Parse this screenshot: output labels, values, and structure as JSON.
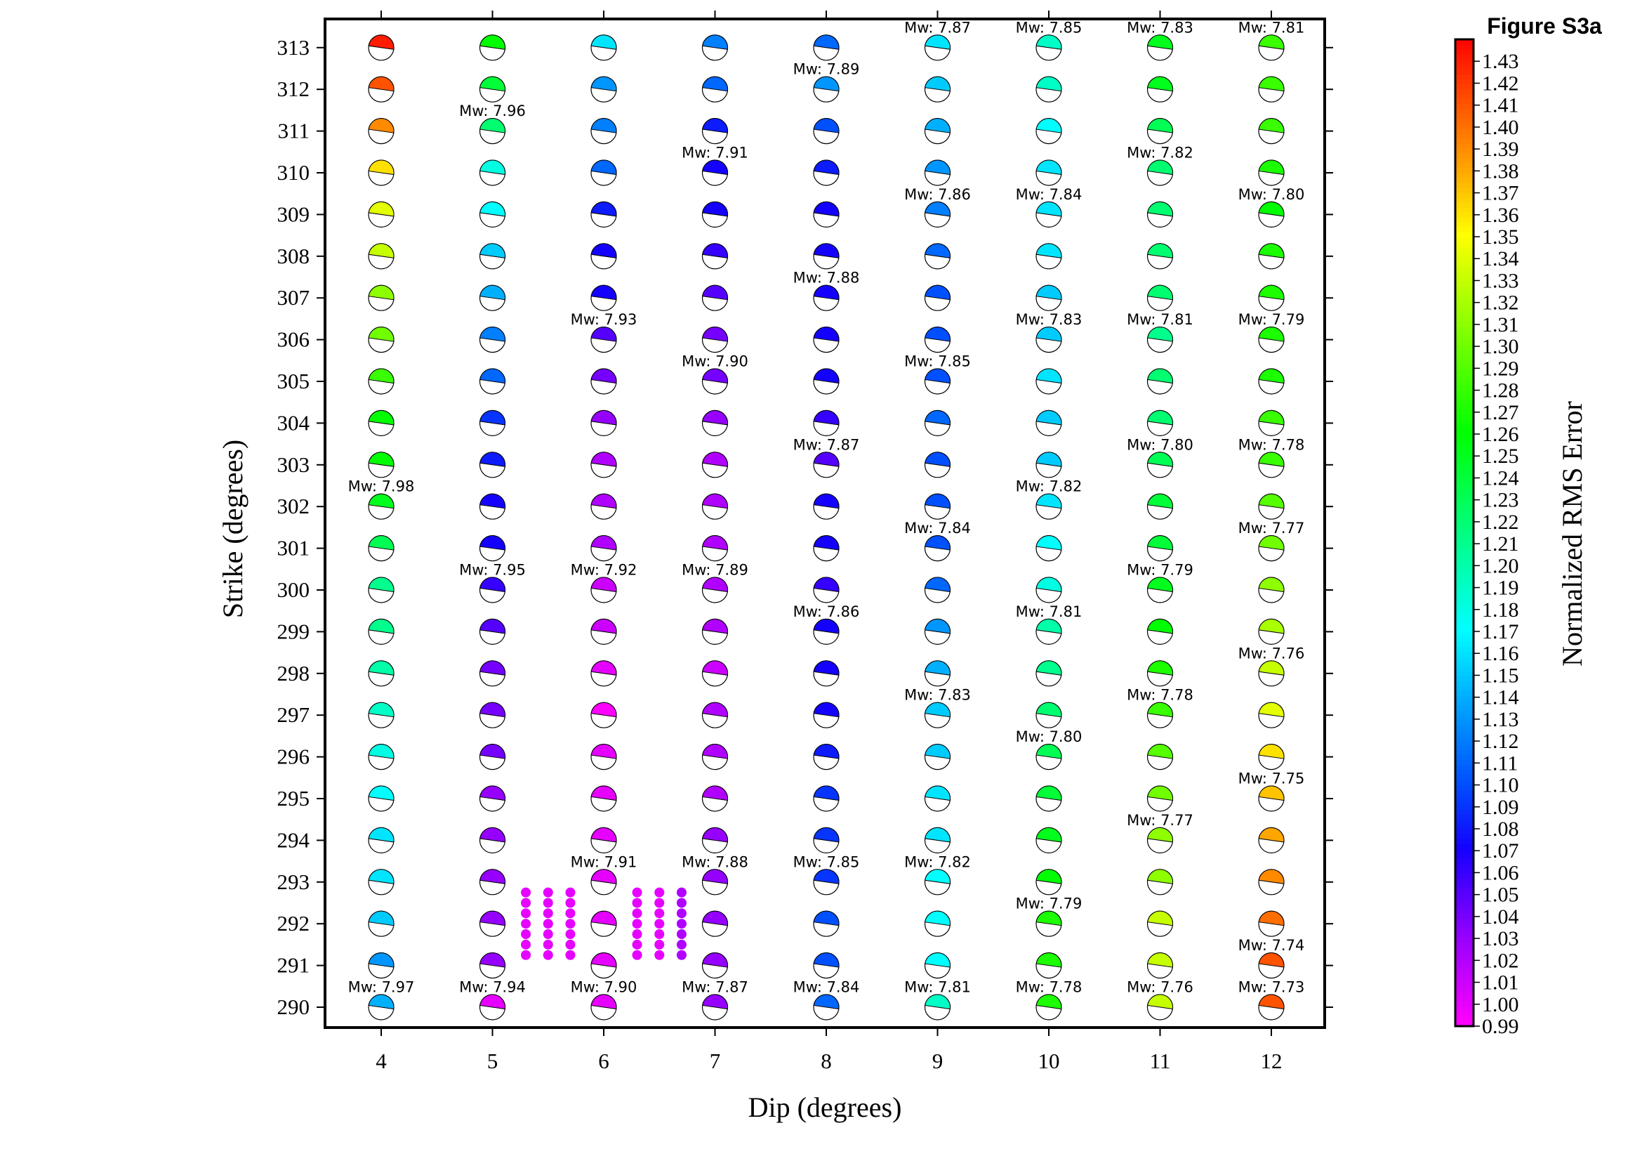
{
  "figure_label": "Figure S3a",
  "chart_data": {
    "type": "scatter",
    "xlabel": "Dip (degrees)",
    "ylabel": "Strike (degrees)",
    "x_ticks": [
      "4",
      "5",
      "6",
      "7",
      "8",
      "9",
      "10",
      "11",
      "12"
    ],
    "y_ticks": [
      "290",
      "291",
      "292",
      "293",
      "294",
      "295",
      "296",
      "297",
      "298",
      "299",
      "300",
      "301",
      "302",
      "303",
      "304",
      "305",
      "306",
      "307",
      "308",
      "309",
      "310",
      "311",
      "312",
      "313"
    ],
    "xlim": [
      3.5,
      12.5
    ],
    "ylim": [
      289.5,
      313.75
    ],
    "colorbar": {
      "label": "Normalized RMS Error",
      "min": 0.99,
      "max": 1.44,
      "tick_labels": [
        "0.99",
        "1.00",
        "1.01",
        "1.02",
        "1.03",
        "1.04",
        "1.05",
        "1.06",
        "1.07",
        "1.08",
        "1.09",
        "1.10",
        "1.11",
        "1.12",
        "1.13",
        "1.14",
        "1.15",
        "1.16",
        "1.17",
        "1.18",
        "1.19",
        "1.20",
        "1.21",
        "1.22",
        "1.23",
        "1.24",
        "1.25",
        "1.26",
        "1.27",
        "1.28",
        "1.29",
        "1.30",
        "1.31",
        "1.32",
        "1.33",
        "1.34",
        "1.35",
        "1.36",
        "1.37",
        "1.38",
        "1.39",
        "1.40",
        "1.41",
        "1.42",
        "1.43"
      ]
    },
    "rms_grid": {
      "strikes": [
        313,
        312,
        311,
        310,
        309,
        308,
        307,
        306,
        305,
        304,
        303,
        302,
        301,
        300,
        299,
        298,
        297,
        296,
        295,
        294,
        293,
        292,
        291,
        290
      ],
      "dips": [
        4,
        5,
        6,
        7,
        8,
        9,
        10,
        11,
        12
      ],
      "values": [
        [
          1.43,
          1.26,
          1.16,
          1.12,
          1.11,
          1.16,
          1.19,
          1.25,
          1.28
        ],
        [
          1.41,
          1.24,
          1.13,
          1.11,
          1.13,
          1.15,
          1.19,
          1.25,
          1.28
        ],
        [
          1.39,
          1.22,
          1.12,
          1.08,
          1.1,
          1.14,
          1.17,
          1.23,
          1.28
        ],
        [
          1.36,
          1.18,
          1.11,
          1.07,
          1.08,
          1.13,
          1.16,
          1.22,
          1.27
        ],
        [
          1.34,
          1.17,
          1.08,
          1.07,
          1.07,
          1.12,
          1.16,
          1.22,
          1.26
        ],
        [
          1.33,
          1.15,
          1.07,
          1.06,
          1.07,
          1.11,
          1.16,
          1.22,
          1.27
        ],
        [
          1.31,
          1.14,
          1.07,
          1.05,
          1.07,
          1.1,
          1.15,
          1.22,
          1.27
        ],
        [
          1.3,
          1.12,
          1.05,
          1.04,
          1.07,
          1.1,
          1.15,
          1.21,
          1.27
        ],
        [
          1.28,
          1.11,
          1.04,
          1.04,
          1.07,
          1.1,
          1.16,
          1.22,
          1.27
        ],
        [
          1.26,
          1.09,
          1.03,
          1.03,
          1.06,
          1.11,
          1.15,
          1.22,
          1.28
        ],
        [
          1.26,
          1.08,
          1.02,
          1.02,
          1.05,
          1.1,
          1.15,
          1.23,
          1.28
        ],
        [
          1.25,
          1.07,
          1.02,
          1.02,
          1.07,
          1.1,
          1.16,
          1.24,
          1.29
        ],
        [
          1.23,
          1.07,
          1.02,
          1.02,
          1.07,
          1.1,
          1.17,
          1.24,
          1.3
        ],
        [
          1.21,
          1.06,
          1.01,
          1.02,
          1.06,
          1.11,
          1.18,
          1.25,
          1.31
        ],
        [
          1.21,
          1.05,
          1.01,
          1.02,
          1.07,
          1.13,
          1.2,
          1.26,
          1.32
        ],
        [
          1.2,
          1.04,
          1.0,
          1.01,
          1.07,
          1.14,
          1.21,
          1.27,
          1.33
        ],
        [
          1.19,
          1.04,
          0.99,
          1.02,
          1.07,
          1.15,
          1.22,
          1.28,
          1.34
        ],
        [
          1.18,
          1.04,
          1.0,
          1.02,
          1.08,
          1.15,
          1.23,
          1.29,
          1.36
        ],
        [
          1.17,
          1.03,
          1.0,
          1.02,
          1.09,
          1.16,
          1.24,
          1.3,
          1.37
        ],
        [
          1.16,
          1.03,
          1.0,
          1.03,
          1.09,
          1.16,
          1.25,
          1.31,
          1.38
        ],
        [
          1.16,
          1.03,
          1.0,
          1.03,
          1.09,
          1.17,
          1.26,
          1.31,
          1.39
        ],
        [
          1.15,
          1.03,
          1.0,
          1.03,
          1.1,
          1.17,
          1.27,
          1.33,
          1.4
        ],
        [
          1.13,
          1.03,
          1.0,
          1.03,
          1.1,
          1.17,
          1.27,
          1.33,
          1.41
        ],
        [
          1.14,
          1.0,
          1.0,
          1.03,
          1.11,
          1.19,
          1.27,
          1.33,
          1.41
        ]
      ]
    },
    "mw_annotations": [
      {
        "text": "Mw: 7.87",
        "dip": 9,
        "strike": 313.48
      },
      {
        "text": "Mw: 7.85",
        "dip": 10,
        "strike": 313.48
      },
      {
        "text": "Mw: 7.83",
        "dip": 11,
        "strike": 313.48
      },
      {
        "text": "Mw: 7.81",
        "dip": 12,
        "strike": 313.48
      },
      {
        "text": "Mw: 7.89",
        "dip": 8,
        "strike": 312.48
      },
      {
        "text": "Mw: 7.96",
        "dip": 5,
        "strike": 311.48
      },
      {
        "text": "Mw: 7.91",
        "dip": 7,
        "strike": 310.48
      },
      {
        "text": "Mw: 7.82",
        "dip": 11,
        "strike": 310.48
      },
      {
        "text": "Mw: 7.86",
        "dip": 9,
        "strike": 309.48
      },
      {
        "text": "Mw: 7.84",
        "dip": 10,
        "strike": 309.48
      },
      {
        "text": "Mw: 7.80",
        "dip": 12,
        "strike": 309.48
      },
      {
        "text": "Mw: 7.88",
        "dip": 8,
        "strike": 307.48
      },
      {
        "text": "Mw: 7.93",
        "dip": 6,
        "strike": 306.48
      },
      {
        "text": "Mw: 7.83",
        "dip": 10,
        "strike": 306.48
      },
      {
        "text": "Mw: 7.81",
        "dip": 11,
        "strike": 306.48
      },
      {
        "text": "Mw: 7.79",
        "dip": 12,
        "strike": 306.48
      },
      {
        "text": "Mw: 7.90",
        "dip": 7,
        "strike": 305.48
      },
      {
        "text": "Mw: 7.85",
        "dip": 9,
        "strike": 305.48
      },
      {
        "text": "Mw: 7.87",
        "dip": 8,
        "strike": 303.48
      },
      {
        "text": "Mw: 7.80",
        "dip": 11,
        "strike": 303.48
      },
      {
        "text": "Mw: 7.78",
        "dip": 12,
        "strike": 303.48
      },
      {
        "text": "Mw: 7.98",
        "dip": 4,
        "strike": 302.48
      },
      {
        "text": "Mw: 7.82",
        "dip": 10,
        "strike": 302.48
      },
      {
        "text": "Mw: 7.84",
        "dip": 9,
        "strike": 301.48
      },
      {
        "text": "Mw: 7.77",
        "dip": 12,
        "strike": 301.48
      },
      {
        "text": "Mw: 7.95",
        "dip": 5,
        "strike": 300.48
      },
      {
        "text": "Mw: 7.92",
        "dip": 6,
        "strike": 300.48
      },
      {
        "text": "Mw: 7.89",
        "dip": 7,
        "strike": 300.48
      },
      {
        "text": "Mw: 7.79",
        "dip": 11,
        "strike": 300.48
      },
      {
        "text": "Mw: 7.86",
        "dip": 8,
        "strike": 299.48
      },
      {
        "text": "Mw: 7.81",
        "dip": 10,
        "strike": 299.48
      },
      {
        "text": "Mw: 7.76",
        "dip": 12,
        "strike": 298.48
      },
      {
        "text": "Mw: 7.83",
        "dip": 9,
        "strike": 297.48
      },
      {
        "text": "Mw: 7.78",
        "dip": 11,
        "strike": 297.48
      },
      {
        "text": "Mw: 7.80",
        "dip": 10,
        "strike": 296.48
      },
      {
        "text": "Mw: 7.75",
        "dip": 12,
        "strike": 295.48
      },
      {
        "text": "Mw: 7.77",
        "dip": 11,
        "strike": 294.48
      },
      {
        "text": "Mw: 7.91",
        "dip": 6,
        "strike": 293.48
      },
      {
        "text": "Mw: 7.88",
        "dip": 7,
        "strike": 293.48
      },
      {
        "text": "Mw: 7.85",
        "dip": 8,
        "strike": 293.48
      },
      {
        "text": "Mw: 7.82",
        "dip": 9,
        "strike": 293.48
      },
      {
        "text": "Mw: 7.79",
        "dip": 10,
        "strike": 292.48
      },
      {
        "text": "Mw: 7.74",
        "dip": 12,
        "strike": 291.48
      },
      {
        "text": "Mw: 7.97",
        "dip": 4,
        "strike": 290.48
      },
      {
        "text": "Mw: 7.94",
        "dip": 5,
        "strike": 290.48
      },
      {
        "text": "Mw: 7.90",
        "dip": 6,
        "strike": 290.48
      },
      {
        "text": "Mw: 7.87",
        "dip": 7,
        "strike": 290.48
      },
      {
        "text": "Mw: 7.84",
        "dip": 8,
        "strike": 290.48
      },
      {
        "text": "Mw: 7.81",
        "dip": 9,
        "strike": 290.48
      },
      {
        "text": "Mw: 7.78",
        "dip": 10,
        "strike": 290.48
      },
      {
        "text": "Mw: 7.76",
        "dip": 11,
        "strike": 290.48
      },
      {
        "text": "Mw: 7.73",
        "dip": 12,
        "strike": 290.48
      }
    ],
    "fine_grid_points": {
      "dips": [
        5.3,
        5.5,
        5.7,
        6.3,
        6.5,
        6.7
      ],
      "strikes": [
        292.75,
        292.5,
        292.25,
        292.0,
        291.75,
        291.5,
        291.25
      ],
      "value": 1.0
    }
  }
}
